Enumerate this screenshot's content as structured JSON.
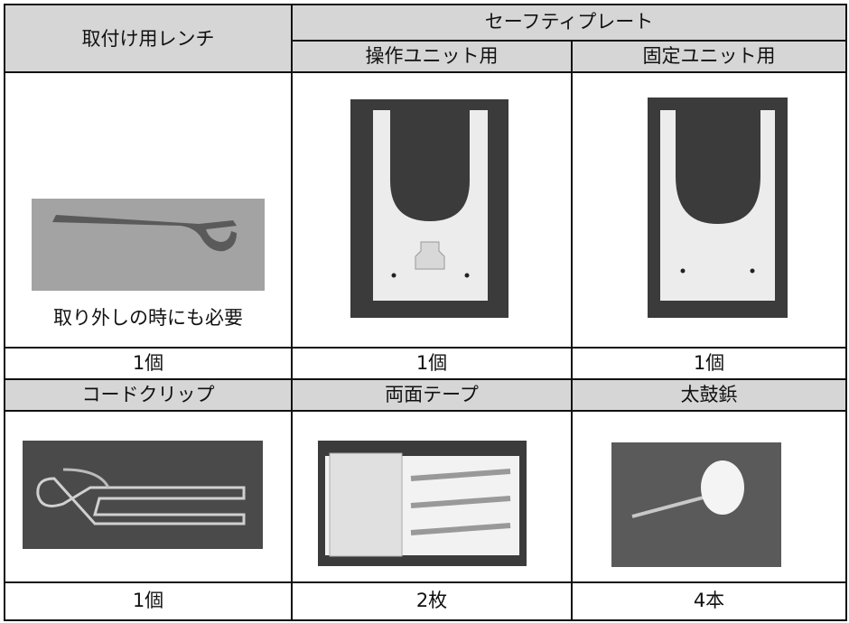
{
  "table": {
    "header": {
      "col1": "取付け用レンチ",
      "group": "セーフティプレート",
      "sub": [
        "操作ユニット用",
        "固定ユニット用"
      ]
    },
    "note": "取り外しの時にも必要",
    "counts_1": [
      "1個",
      "1個",
      "1個"
    ],
    "labels_2": [
      "コードクリップ",
      "両面テープ",
      "太鼓鋲"
    ],
    "counts_2": [
      "1個",
      "2枚",
      "4本"
    ]
  }
}
